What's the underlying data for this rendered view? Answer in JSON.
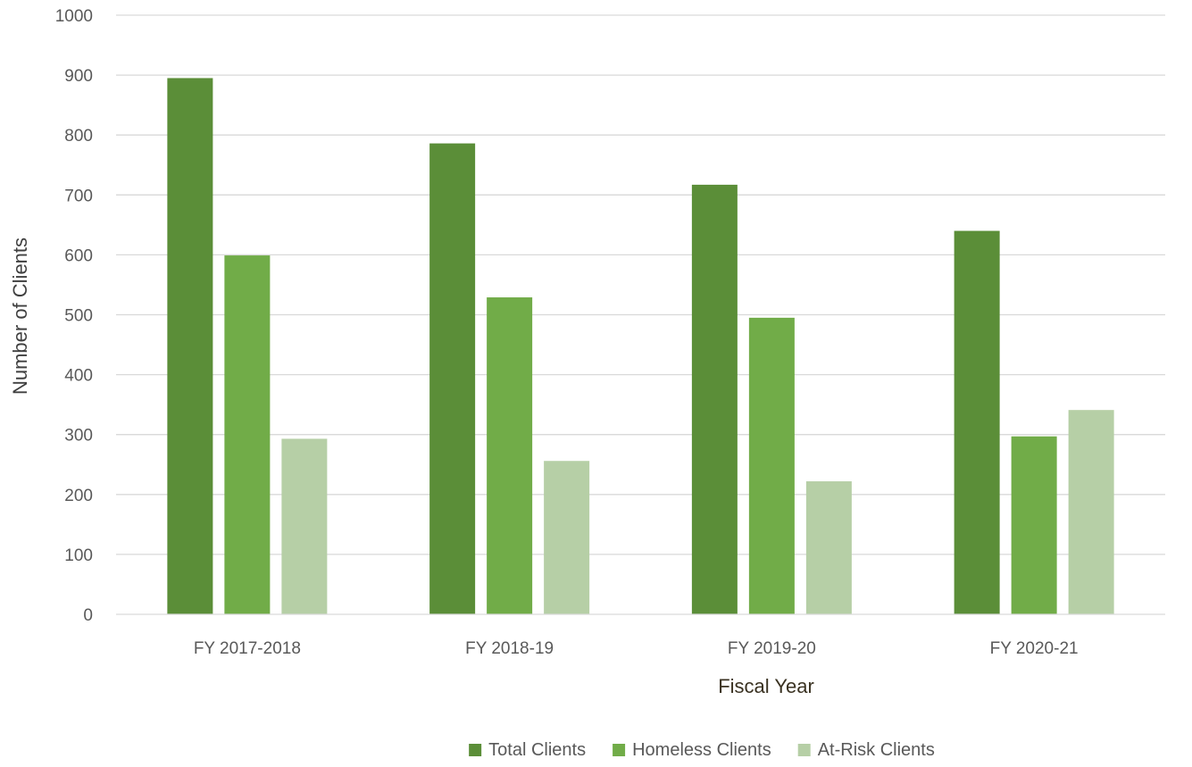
{
  "chart_data": {
    "type": "bar",
    "title": "",
    "xlabel": "Fiscal Year",
    "ylabel": "Number of Clients",
    "categories": [
      "FY 2017-2018",
      "FY 2018-19",
      "FY 2019-20",
      "FY 2020-21"
    ],
    "series": [
      {
        "name": "Total Clients",
        "color": "#5b8e38",
        "values": [
          895,
          786,
          717,
          640
        ]
      },
      {
        "name": "Homeless Clients",
        "color": "#71ac48",
        "values": [
          599,
          529,
          495,
          297
        ]
      },
      {
        "name": "At-Risk Clients",
        "color": "#b6cfa6",
        "values": [
          293,
          256,
          222,
          341
        ]
      }
    ],
    "ylim": [
      0,
      1000
    ],
    "yticks": [
      "0",
      "100",
      "200",
      "300",
      "400",
      "500",
      "600",
      "700",
      "800",
      "900",
      "1000"
    ],
    "grid": true,
    "legend_position": "bottom"
  }
}
